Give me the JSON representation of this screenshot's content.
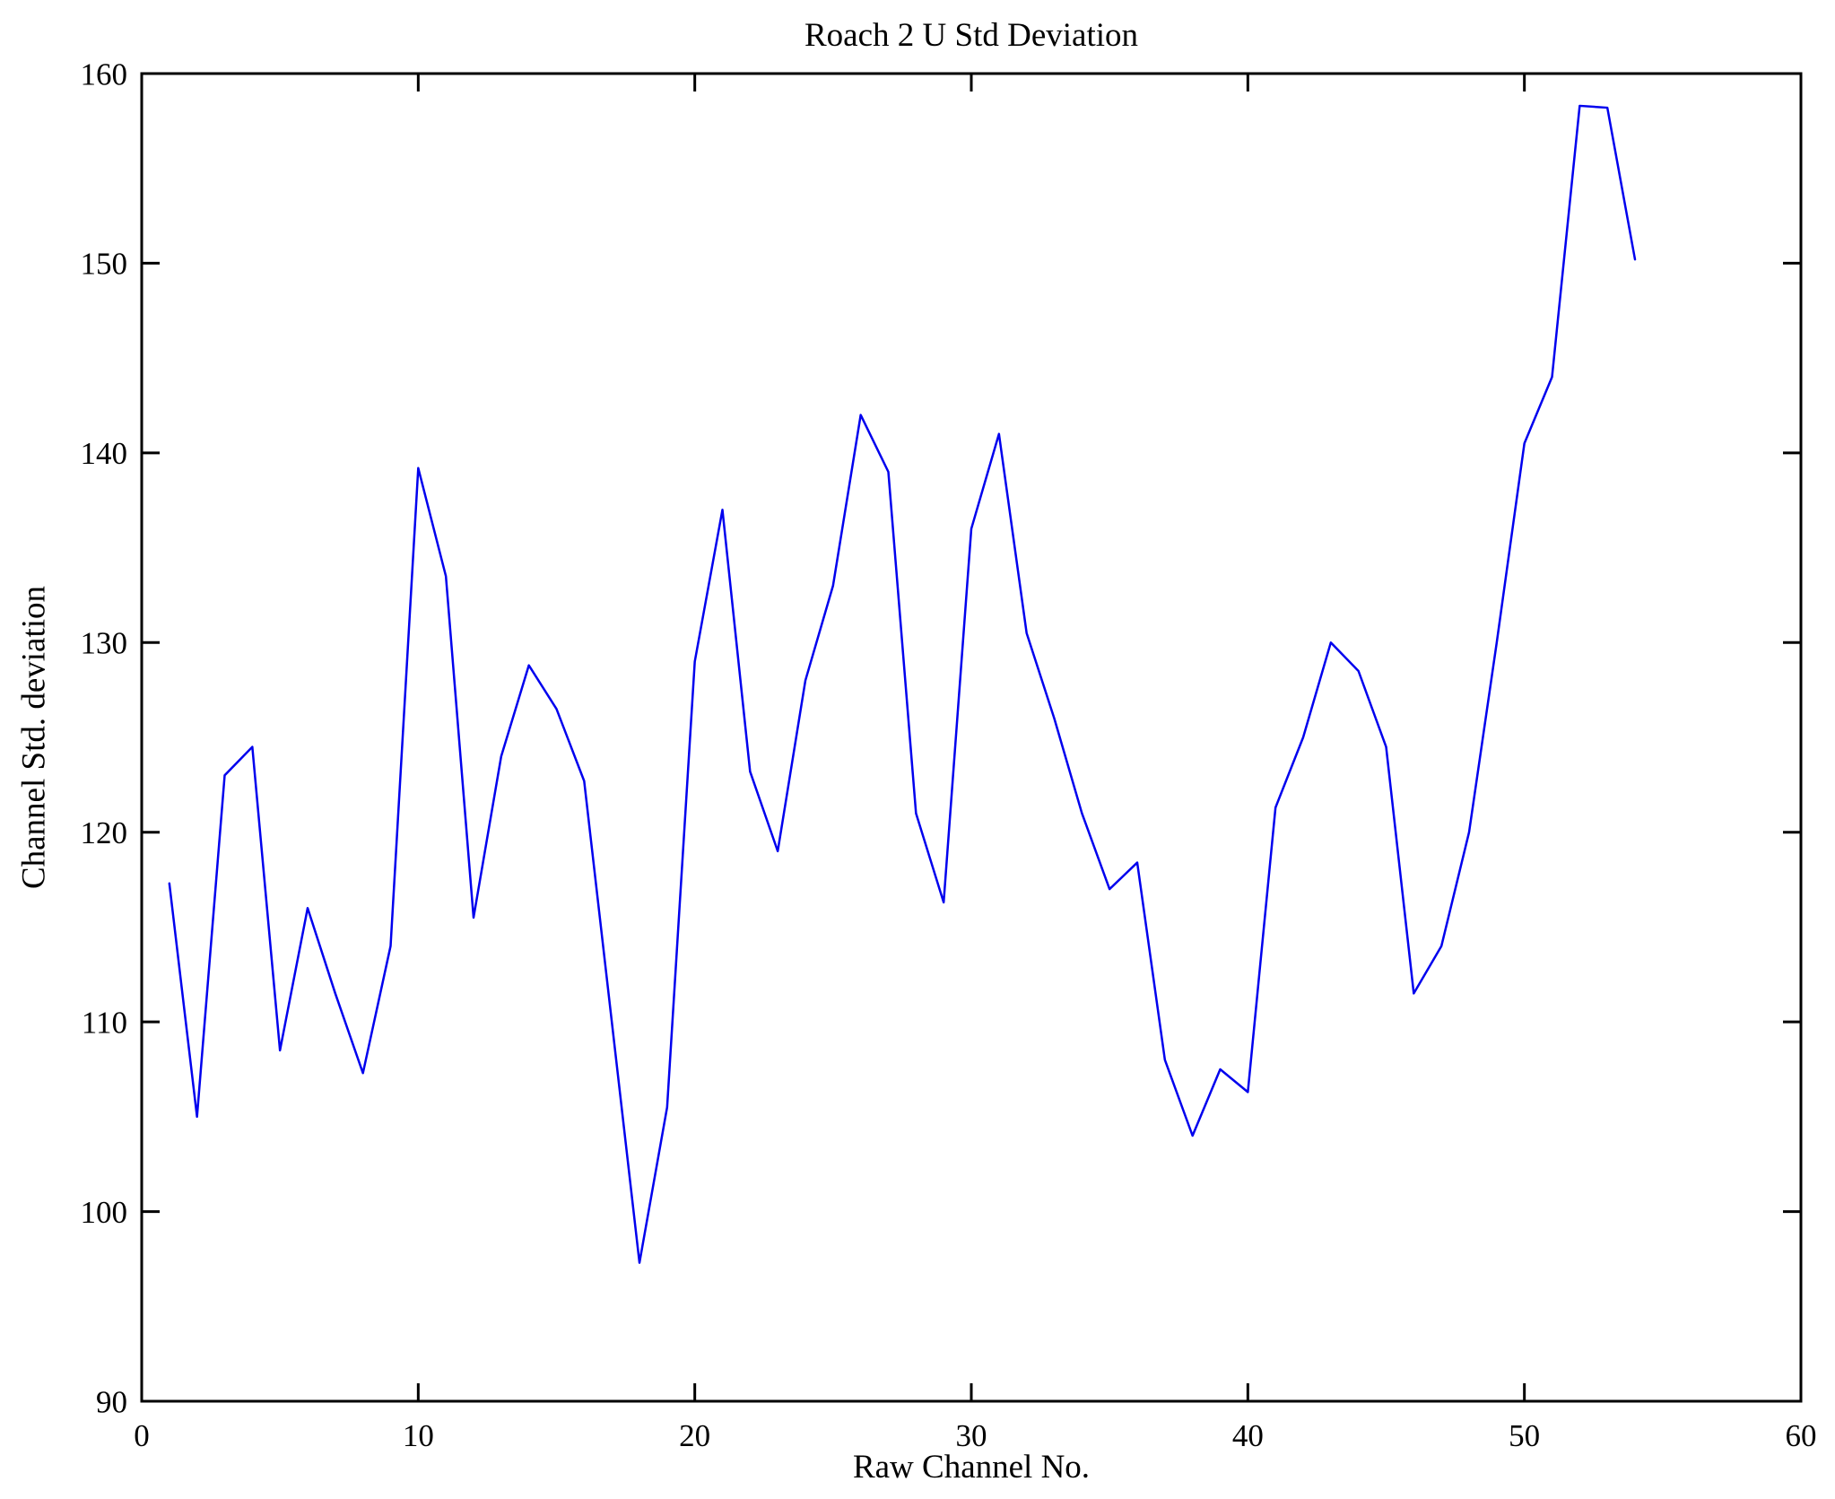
{
  "chart_data": {
    "type": "line",
    "title": "Roach 2 U Std Deviation",
    "xlabel": "Raw Channel No.",
    "ylabel": "Channel Std. deviation",
    "xlim": [
      0,
      60
    ],
    "ylim": [
      90,
      160
    ],
    "xticks": [
      0,
      10,
      20,
      30,
      40,
      50,
      60
    ],
    "yticks": [
      90,
      100,
      110,
      120,
      130,
      140,
      150,
      160
    ],
    "grid": false,
    "legend": "none",
    "line_color": "#0000EE",
    "axis_color": "#000000",
    "x": [
      1,
      2,
      3,
      4,
      5,
      6,
      7,
      8,
      9,
      10,
      11,
      12,
      13,
      14,
      15,
      16,
      17,
      18,
      19,
      20,
      21,
      22,
      23,
      24,
      25,
      26,
      27,
      28,
      29,
      30,
      31,
      32,
      33,
      34,
      35,
      36,
      37,
      38,
      39,
      40,
      41,
      42,
      43,
      44,
      45,
      46,
      47,
      48,
      49,
      50,
      51,
      52,
      53,
      54
    ],
    "values": [
      117.3,
      105.0,
      123.0,
      124.5,
      108.5,
      116.0,
      111.5,
      107.3,
      114.0,
      139.2,
      133.5,
      115.5,
      124.0,
      128.8,
      126.5,
      122.7,
      110.0,
      97.3,
      105.5,
      129.0,
      137.0,
      123.2,
      119.0,
      128.0,
      133.0,
      142.0,
      139.0,
      121.0,
      116.3,
      136.0,
      141.0,
      130.5,
      126.0,
      121.0,
      117.0,
      118.4,
      108.0,
      104.0,
      107.5,
      106.3,
      121.3,
      125.0,
      130.0,
      128.5,
      124.5,
      111.5,
      114.0,
      120.0,
      130.0,
      140.5,
      144.0,
      158.3,
      158.2,
      150.2
    ]
  }
}
